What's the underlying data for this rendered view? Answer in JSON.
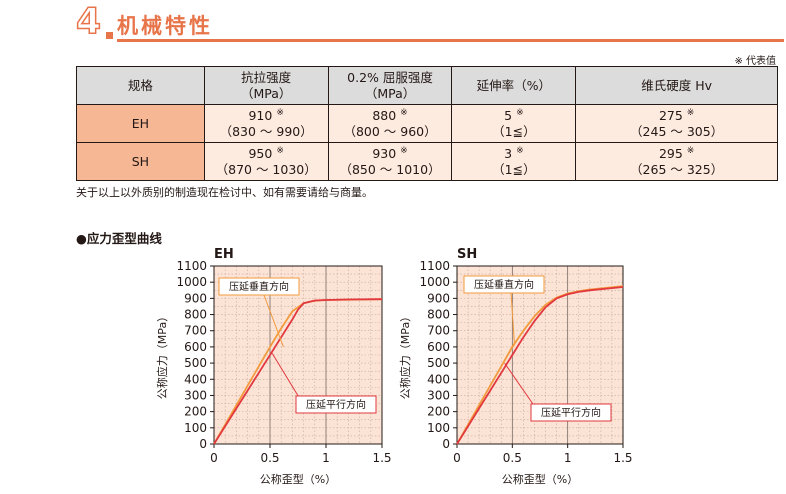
{
  "header": {
    "number": "4",
    "title": "机械特性"
  },
  "note_top": "※ 代表值",
  "table": {
    "headers": [
      {
        "line1": "规格",
        "line2": ""
      },
      {
        "line1": "抗拉强度",
        "line2": "（MPa）"
      },
      {
        "line1": "0.2% 屈服强度",
        "line2": "（MPa）"
      },
      {
        "line1": "延伸率（%）",
        "line2": ""
      },
      {
        "line1": "维氏硬度 Hv",
        "line2": ""
      }
    ],
    "rows": [
      {
        "grade": "EH",
        "cells": [
          {
            "value": "910",
            "mark": "※",
            "range": "（830 ～ 990）"
          },
          {
            "value": "880",
            "mark": "※",
            "range": "（800 ～ 960）"
          },
          {
            "value": "5",
            "mark": "※",
            "range": "（1≦）"
          },
          {
            "value": "275",
            "mark": "※",
            "range": "（245 ～ 305）"
          }
        ]
      },
      {
        "grade": "SH",
        "cells": [
          {
            "value": "950",
            "mark": "※",
            "range": "（870 ～ 1030）"
          },
          {
            "value": "930",
            "mark": "※",
            "range": "（850 ～ 1010）"
          },
          {
            "value": "3",
            "mark": "※",
            "range": "（1≦）"
          },
          {
            "value": "295",
            "mark": "※",
            "range": "（265 ～ 325）"
          }
        ]
      }
    ]
  },
  "note_bottom": "关于以上以外质别的制造现在检讨中、如有需要请给与商量。",
  "curve_section_title": "●应力歪型曲线",
  "chart_data": [
    {
      "type": "line",
      "title": "EH",
      "xlabel": "公称歪型（%）",
      "ylabel": "公称应力（MPa）",
      "xlim": [
        0,
        1.5
      ],
      "ylim": [
        0,
        1100
      ],
      "xticks": [
        "0",
        "0.5",
        "1",
        "1.5"
      ],
      "yticks": [
        "0",
        "100",
        "200",
        "300",
        "400",
        "500",
        "600",
        "700",
        "800",
        "900",
        "1000",
        "1100"
      ],
      "grid": true,
      "series": [
        {
          "name": "压延垂直方向",
          "color": "#f39a3c",
          "x": [
            0,
            0.1,
            0.2,
            0.3,
            0.4,
            0.5,
            0.6,
            0.7,
            0.8,
            0.9,
            1.0,
            1.2,
            1.5
          ],
          "y": [
            0,
            120,
            240,
            360,
            480,
            600,
            715,
            820,
            870,
            885,
            890,
            892,
            895
          ]
        },
        {
          "name": "压延平行方向",
          "color": "#e2383f",
          "x": [
            0,
            0.1,
            0.2,
            0.3,
            0.4,
            0.5,
            0.6,
            0.7,
            0.75,
            0.8,
            0.9,
            1.0,
            1.2,
            1.5
          ],
          "y": [
            0,
            110,
            220,
            330,
            440,
            550,
            660,
            770,
            830,
            870,
            887,
            890,
            893,
            895
          ]
        }
      ],
      "annotations": [
        "压延垂直方向",
        "压延平行方向"
      ]
    },
    {
      "type": "line",
      "title": "SH",
      "xlabel": "公称歪型（%）",
      "ylabel": "公称应力（MPa）",
      "xlim": [
        0,
        1.5
      ],
      "ylim": [
        0,
        1100
      ],
      "xticks": [
        "0",
        "0.5",
        "1",
        "1.5"
      ],
      "yticks": [
        "0",
        "100",
        "200",
        "300",
        "400",
        "500",
        "600",
        "700",
        "800",
        "900",
        "1000",
        "1100"
      ],
      "grid": true,
      "series": [
        {
          "name": "压延垂直方向",
          "color": "#f39a3c",
          "x": [
            0,
            0.1,
            0.2,
            0.3,
            0.4,
            0.5,
            0.6,
            0.7,
            0.8,
            0.9,
            1.0,
            1.1,
            1.2,
            1.5
          ],
          "y": [
            0,
            120,
            240,
            360,
            480,
            600,
            700,
            790,
            860,
            905,
            930,
            945,
            955,
            975
          ]
        },
        {
          "name": "压延平行方向",
          "color": "#e2383f",
          "x": [
            0,
            0.1,
            0.2,
            0.3,
            0.4,
            0.5,
            0.6,
            0.7,
            0.8,
            0.9,
            1.0,
            1.1,
            1.2,
            1.5
          ],
          "y": [
            0,
            110,
            220,
            330,
            440,
            550,
            660,
            760,
            845,
            900,
            925,
            940,
            950,
            970
          ]
        }
      ],
      "annotations": [
        "压延垂直方向",
        "压延平行方向"
      ]
    }
  ]
}
